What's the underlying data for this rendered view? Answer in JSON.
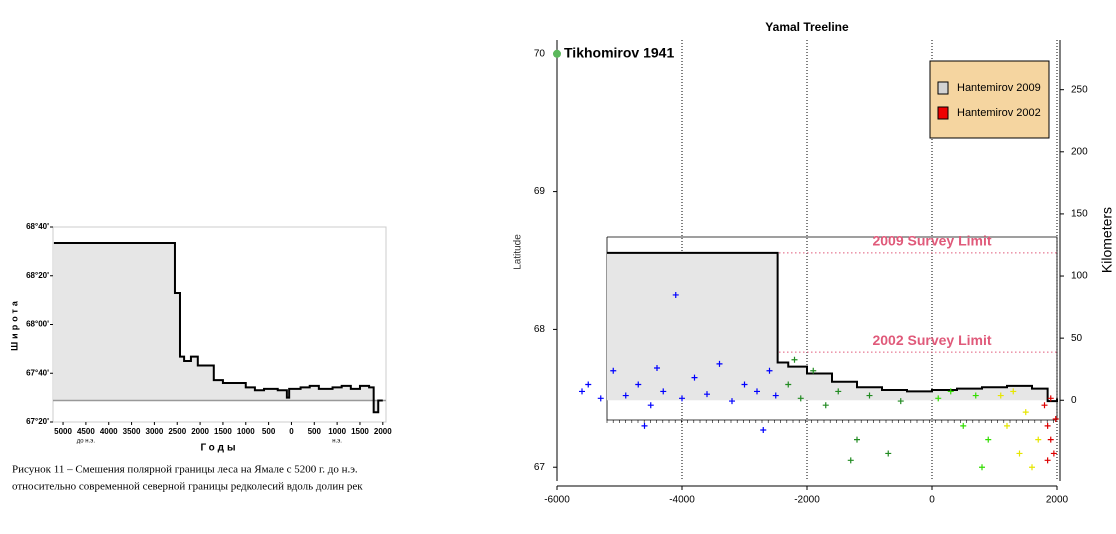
{
  "chart_data": [
    {
      "type": "line",
      "step": true,
      "fill": true,
      "x_label": "Годы",
      "y_label": "Широта",
      "annotations": [
        {
          "text": "до н.э.",
          "x": -4500
        },
        {
          "text": "н.э.",
          "x": 1000
        }
      ],
      "caption": [
        "Рисунок 11 – Смешения полярной границы леса на Ямале с 5200 г. до н.э.",
        "относительно современной северной границы редколесий вдоль долин рек"
      ],
      "xlim": [
        -5220,
        2070
      ],
      "ylim": [
        67.3333,
        68.6667
      ],
      "xticks": [
        {
          "value": -5000,
          "label": "5000"
        },
        {
          "value": -4500,
          "label": "4500"
        },
        {
          "value": -4000,
          "label": "4000"
        },
        {
          "value": -3500,
          "label": "3500"
        },
        {
          "value": -3000,
          "label": "3000"
        },
        {
          "value": -2500,
          "label": "2500"
        },
        {
          "value": -2000,
          "label": "2000"
        },
        {
          "value": -1500,
          "label": "1500"
        },
        {
          "value": -1000,
          "label": "1000"
        },
        {
          "value": -500,
          "label": "500"
        },
        0,
        500,
        1000,
        1500,
        2000
      ],
      "yticks": [
        {
          "value": 67.3333,
          "label": "67°20'"
        },
        {
          "value": 67.6667,
          "label": "67°40'"
        },
        {
          "value": 68,
          "label": "68°00'"
        },
        {
          "value": 68.3333,
          "label": "68°20'"
        },
        {
          "value": 68.6667,
          "label": "68°40'"
        }
      ],
      "baseline": 67.48,
      "color": "#000000",
      "fill_color": "#e6e6e6",
      "x": [
        -5200,
        -2550,
        -2440,
        -2350,
        -2200,
        -2050,
        -1700,
        -1500,
        -1000,
        -800,
        -600,
        -300,
        -100,
        -50,
        200,
        400,
        600,
        900,
        1100,
        1300,
        1500,
        1700,
        1800,
        1900,
        2000
      ],
      "values": [
        68.557,
        68.215,
        67.78,
        67.75,
        67.78,
        67.72,
        67.62,
        67.6,
        67.57,
        67.55,
        67.56,
        67.55,
        67.5,
        67.56,
        67.57,
        67.58,
        67.56,
        67.57,
        67.58,
        67.56,
        67.58,
        67.57,
        67.4,
        67.48,
        67.48
      ]
    },
    {
      "type": "scatter",
      "title": "Yamal Treeline",
      "y_label": "Latitude",
      "y2_label": "Kilometers",
      "xlim": [
        -6000,
        2000
      ],
      "ylim": [
        66.9,
        70.1
      ],
      "y2lim": [
        -65,
        290
      ],
      "xticks": [
        -6000,
        -4000,
        -2000,
        0,
        2000
      ],
      "yticks": [
        67,
        68,
        69,
        70
      ],
      "y2ticks": [
        0,
        50,
        100,
        150,
        200,
        250
      ],
      "xgrid": true,
      "legend": "top-right",
      "legend_color": "#f5d5a0",
      "annotations": [
        {
          "text": "Tikhomirov 1941",
          "x": -6000,
          "y": 70,
          "color": "#5cb85c"
        }
      ],
      "reference_lines": [
        {
          "label": "2009 Survey Limit",
          "y": 68.555,
          "color": "#e05a7a"
        },
        {
          "label": "2002 Survey Limit",
          "y": 67.835,
          "color": "#e05a7a"
        }
      ],
      "series": [
        {
          "name": "Hantemirov 2009",
          "kind": "step",
          "color": "#d3d3d3",
          "x": [
            -5200,
            -2470,
            -2300,
            -2000,
            -1600,
            -1200,
            -800,
            -400,
            0,
            400,
            800,
            1200,
            1600,
            1850,
            2000
          ],
          "values": [
            68.555,
            67.76,
            67.73,
            67.68,
            67.62,
            67.58,
            67.56,
            67.55,
            67.56,
            67.57,
            67.58,
            67.59,
            67.57,
            67.48,
            67.5
          ]
        },
        {
          "name": "Hantemirov 2002",
          "kind": "points",
          "color": "#ee0000",
          "x": [
            -5600,
            -5500,
            -5300,
            -5100,
            -4900,
            -4700,
            -4500,
            -4400,
            -4300,
            -4100,
            -4000,
            -3800,
            -3600,
            -3400,
            -3200,
            -3000,
            -2800,
            -2600,
            -2500,
            -4600,
            -2700,
            -2300,
            -2100,
            -1900,
            -1700,
            -1500,
            -1200,
            -1000,
            -700,
            -500,
            -1300,
            -2200,
            100,
            300,
            500,
            700,
            900,
            800,
            1100,
            1200,
            1300,
            1400,
            1500,
            1600,
            1700,
            1800,
            1850,
            1900,
            1950,
            1900,
            1980,
            1850
          ],
          "values": [
            67.55,
            67.6,
            67.5,
            67.7,
            67.52,
            67.6,
            67.45,
            67.72,
            67.55,
            68.25,
            67.5,
            67.65,
            67.53,
            67.75,
            67.48,
            67.6,
            67.55,
            67.7,
            67.52,
            67.3,
            67.27,
            67.6,
            67.5,
            67.7,
            67.45,
            67.55,
            67.2,
            67.52,
            67.1,
            67.48,
            67.05,
            67.78,
            67.5,
            67.55,
            67.3,
            67.52,
            67.2,
            67.0,
            67.52,
            67.3,
            67.55,
            67.1,
            67.4,
            67.0,
            67.2,
            67.45,
            67.3,
            67.2,
            67.1,
            67.5,
            67.35,
            67.05
          ],
          "colors": [
            "#0000ff",
            "#0000ff",
            "#0000ff",
            "#0000ff",
            "#0000ff",
            "#0000ff",
            "#0000ff",
            "#0000ff",
            "#0000ff",
            "#0000ff",
            "#0000ff",
            "#0000ff",
            "#0000ff",
            "#0000ff",
            "#0000ff",
            "#0000ff",
            "#0000ff",
            "#0000ff",
            "#0000ff",
            "#0000ff",
            "#0000ff",
            "#228b22",
            "#228b22",
            "#228b22",
            "#228b22",
            "#228b22",
            "#228b22",
            "#228b22",
            "#228b22",
            "#228b22",
            "#228b22",
            "#228b22",
            "#33dd00",
            "#33dd00",
            "#33dd00",
            "#33dd00",
            "#33dd00",
            "#33dd00",
            "#e6e600",
            "#e6e600",
            "#e6e600",
            "#e6e600",
            "#e6e600",
            "#e6e600",
            "#e6e600",
            "#dd0000",
            "#dd0000",
            "#dd0000",
            "#dd0000",
            "#dd0000",
            "#dd0000",
            "#dd0000"
          ]
        }
      ]
    }
  ]
}
